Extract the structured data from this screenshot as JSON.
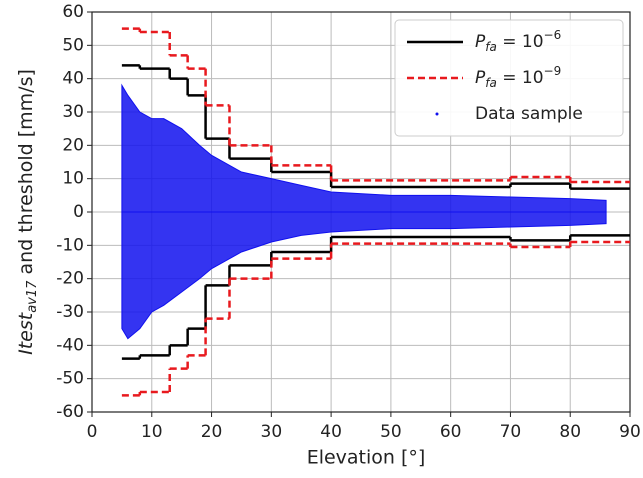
{
  "chart_data": {
    "type": "step",
    "x_label": "Elevation [°]",
    "y_label_parts": [
      "Itest",
      "av17",
      " and threshold [mm/s]"
    ],
    "xlim": [
      0,
      90
    ],
    "xticks": [
      0,
      10,
      20,
      30,
      40,
      50,
      60,
      70,
      80,
      90
    ],
    "ylim": [
      -60,
      60
    ],
    "yticks": [
      -60,
      -50,
      -40,
      -30,
      -20,
      -10,
      0,
      10,
      20,
      30,
      40,
      50,
      60
    ],
    "grid": true,
    "legend": "upper right",
    "series": [
      {
        "name_parts": [
          "P",
          "fa",
          " = 10",
          "−6"
        ],
        "color": "#000000",
        "dash": "solid",
        "edges": [
          5,
          8,
          13,
          16,
          19,
          23,
          30,
          40,
          70,
          80,
          90
        ],
        "upper": [
          44,
          43,
          40,
          35,
          22,
          16,
          12,
          7.5,
          8.5,
          7
        ],
        "lower": [
          -44,
          -43,
          -40,
          -35,
          -22,
          -16,
          -12,
          -7.5,
          -8.5,
          -7
        ]
      },
      {
        "name_parts": [
          "P",
          "fa",
          " = 10",
          "−9"
        ],
        "color": "#e8191e",
        "dash": "dashed",
        "edges": [
          5,
          8,
          13,
          16,
          19,
          23,
          30,
          40,
          70,
          80,
          90
        ],
        "upper": [
          55,
          54,
          47,
          43,
          32,
          20,
          14,
          9.5,
          10.5,
          9
        ],
        "lower": [
          -55,
          -54,
          -47,
          -43,
          -32,
          -20,
          -14,
          -9.5,
          -10.5,
          -9
        ]
      },
      {
        "name": "Data sample",
        "color": "#1010ee",
        "kind": "band",
        "x": [
          5,
          6,
          8,
          10,
          12,
          15,
          18,
          20,
          25,
          30,
          35,
          40,
          50,
          60,
          70,
          80,
          86
        ],
        "upper": [
          38,
          35,
          30,
          28,
          28,
          25,
          20,
          17,
          12,
          10,
          8,
          6,
          5,
          5,
          4.5,
          4,
          3.5
        ],
        "lower": [
          -35,
          -38,
          -35,
          -30,
          -28,
          -24,
          -20,
          -17,
          -12,
          -9,
          -7,
          -6,
          -5,
          -5,
          -4.5,
          -4,
          -3.5
        ]
      }
    ]
  }
}
